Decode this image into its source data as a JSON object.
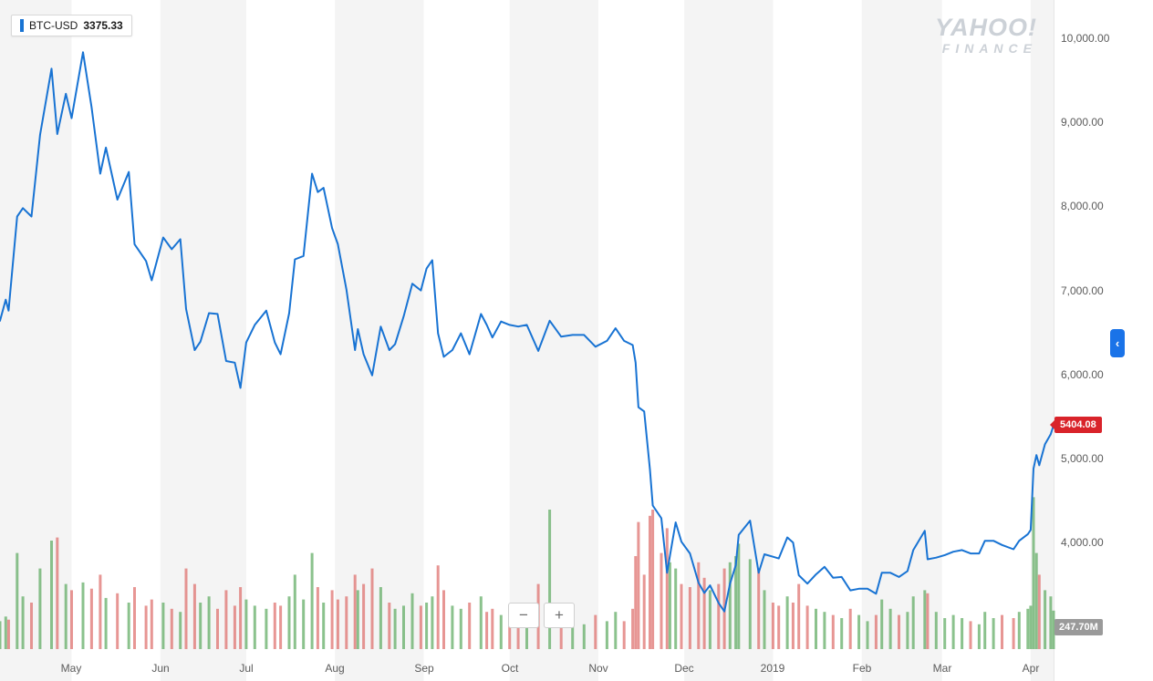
{
  "legend": {
    "symbol": "BTC-USD",
    "value": "3375.33"
  },
  "watermark": {
    "line1": "YAHOO!",
    "line2": "FINANCE"
  },
  "price_tag": {
    "value": "5404.08",
    "color": "#d9232a"
  },
  "volume_tag": {
    "value": "247.70M",
    "color": "#9a9a9a"
  },
  "zoom_controls": {
    "zoom_out": "−",
    "zoom_in": "+"
  },
  "chevron": {
    "glyph": "‹"
  },
  "colors": {
    "line": "#1873d3",
    "vol_up": "#5aa85c",
    "vol_down": "#dd6a66",
    "stripe": "#f4f4f4",
    "axis_line": "#e6e6e6",
    "chevron_bg": "#1a73e8"
  },
  "chart_data": {
    "type": "line",
    "symbol": "BTC-USD",
    "title": "BTC-USD price with volume",
    "x_domain": [
      "2018-04-06",
      "2019-04-09"
    ],
    "last_price": 5404.08,
    "last_volume_label": "247.70M",
    "y_axis": {
      "tick_values": [
        10000,
        9000,
        8000,
        7000,
        6000,
        5000,
        4000
      ],
      "tick_labels": [
        "10,000.00",
        "9,000.00",
        "8,000.00",
        "7,000.00",
        "6,000.00",
        "5,000.00",
        "4,000.00"
      ]
    },
    "x_axis": {
      "ticks": [
        {
          "label": "May",
          "date": "2018-05-01"
        },
        {
          "label": "Jun",
          "date": "2018-06-01"
        },
        {
          "label": "Jul",
          "date": "2018-07-01"
        },
        {
          "label": "Aug",
          "date": "2018-08-01"
        },
        {
          "label": "Sep",
          "date": "2018-09-01"
        },
        {
          "label": "Oct",
          "date": "2018-10-01"
        },
        {
          "label": "Nov",
          "date": "2018-11-01"
        },
        {
          "label": "Dec",
          "date": "2018-12-01"
        },
        {
          "label": "2019",
          "date": "2019-01-01"
        },
        {
          "label": "Feb",
          "date": "2019-02-01"
        },
        {
          "label": "Mar",
          "date": "2019-03-01"
        },
        {
          "label": "Apr",
          "date": "2019-04-01"
        }
      ]
    },
    "series": [
      {
        "name": "BTC-USD",
        "fields": [
          "date",
          "close",
          "volume"
        ],
        "points": [
          [
            "2018-04-06",
            6650,
            180
          ],
          [
            "2018-04-08",
            6900,
            210
          ],
          [
            "2018-04-09",
            6770,
            190
          ],
          [
            "2018-04-12",
            7890,
            620
          ],
          [
            "2018-04-14",
            7990,
            340
          ],
          [
            "2018-04-17",
            7890,
            300
          ],
          [
            "2018-04-20",
            8860,
            520
          ],
          [
            "2018-04-24",
            9650,
            700
          ],
          [
            "2018-04-26",
            8870,
            720
          ],
          [
            "2018-04-29",
            9350,
            420
          ],
          [
            "2018-05-01",
            9060,
            380
          ],
          [
            "2018-05-05",
            9845,
            430
          ],
          [
            "2018-05-08",
            9190,
            390
          ],
          [
            "2018-05-11",
            8400,
            480
          ],
          [
            "2018-05-13",
            8710,
            330
          ],
          [
            "2018-05-17",
            8090,
            360
          ],
          [
            "2018-05-21",
            8420,
            300
          ],
          [
            "2018-05-23",
            7560,
            400
          ],
          [
            "2018-05-27",
            7360,
            280
          ],
          [
            "2018-05-29",
            7130,
            320
          ],
          [
            "2018-06-02",
            7640,
            300
          ],
          [
            "2018-06-05",
            7500,
            260
          ],
          [
            "2018-06-08",
            7620,
            240
          ],
          [
            "2018-06-10",
            6790,
            520
          ],
          [
            "2018-06-13",
            6300,
            420
          ],
          [
            "2018-06-15",
            6400,
            300
          ],
          [
            "2018-06-18",
            6740,
            340
          ],
          [
            "2018-06-21",
            6730,
            260
          ],
          [
            "2018-06-24",
            6170,
            380
          ],
          [
            "2018-06-27",
            6150,
            280
          ],
          [
            "2018-06-29",
            5850,
            400
          ],
          [
            "2018-07-01",
            6390,
            320
          ],
          [
            "2018-07-04",
            6600,
            280
          ],
          [
            "2018-07-08",
            6770,
            260
          ],
          [
            "2018-07-11",
            6390,
            300
          ],
          [
            "2018-07-13",
            6250,
            280
          ],
          [
            "2018-07-16",
            6740,
            340
          ],
          [
            "2018-07-18",
            7380,
            480
          ],
          [
            "2018-07-21",
            7420,
            320
          ],
          [
            "2018-07-24",
            8400,
            620
          ],
          [
            "2018-07-26",
            8180,
            400
          ],
          [
            "2018-07-28",
            8230,
            300
          ],
          [
            "2018-07-31",
            7750,
            380
          ],
          [
            "2018-08-02",
            7560,
            320
          ],
          [
            "2018-08-05",
            7020,
            340
          ],
          [
            "2018-08-08",
            6300,
            480
          ],
          [
            "2018-08-09",
            6550,
            380
          ],
          [
            "2018-08-11",
            6250,
            420
          ],
          [
            "2018-08-14",
            6000,
            520
          ],
          [
            "2018-08-17",
            6580,
            400
          ],
          [
            "2018-08-20",
            6300,
            300
          ],
          [
            "2018-08-22",
            6370,
            260
          ],
          [
            "2018-08-25",
            6700,
            280
          ],
          [
            "2018-08-28",
            7090,
            360
          ],
          [
            "2018-08-31",
            7010,
            280
          ],
          [
            "2018-09-02",
            7270,
            300
          ],
          [
            "2018-09-04",
            7370,
            340
          ],
          [
            "2018-09-06",
            6500,
            540
          ],
          [
            "2018-09-08",
            6220,
            380
          ],
          [
            "2018-09-11",
            6300,
            280
          ],
          [
            "2018-09-14",
            6500,
            260
          ],
          [
            "2018-09-17",
            6250,
            300
          ],
          [
            "2018-09-21",
            6730,
            340
          ],
          [
            "2018-09-23",
            6600,
            240
          ],
          [
            "2018-09-25",
            6450,
            260
          ],
          [
            "2018-09-28",
            6640,
            220
          ],
          [
            "2018-10-01",
            6600,
            200
          ],
          [
            "2018-10-04",
            6580,
            180
          ],
          [
            "2018-10-07",
            6600,
            160
          ],
          [
            "2018-10-11",
            6290,
            420
          ],
          [
            "2018-10-15",
            6650,
            900
          ],
          [
            "2018-10-19",
            6460,
            220
          ],
          [
            "2018-10-23",
            6480,
            180
          ],
          [
            "2018-10-27",
            6480,
            160
          ],
          [
            "2018-10-31",
            6340,
            220
          ],
          [
            "2018-11-04",
            6410,
            180
          ],
          [
            "2018-11-07",
            6560,
            240
          ],
          [
            "2018-11-10",
            6410,
            180
          ],
          [
            "2018-11-13",
            6360,
            260
          ],
          [
            "2018-11-14",
            6150,
            600
          ],
          [
            "2018-11-15",
            5620,
            820
          ],
          [
            "2018-11-17",
            5570,
            480
          ],
          [
            "2018-11-19",
            4880,
            860
          ],
          [
            "2018-11-20",
            4450,
            900
          ],
          [
            "2018-11-23",
            4300,
            620
          ],
          [
            "2018-11-25",
            3650,
            780
          ],
          [
            "2018-11-26",
            3850,
            560
          ],
          [
            "2018-11-28",
            4250,
            520
          ],
          [
            "2018-11-30",
            4020,
            420
          ],
          [
            "2018-12-03",
            3880,
            400
          ],
          [
            "2018-12-06",
            3530,
            560
          ],
          [
            "2018-12-08",
            3410,
            460
          ],
          [
            "2018-12-10",
            3500,
            380
          ],
          [
            "2018-12-13",
            3290,
            420
          ],
          [
            "2018-12-15",
            3190,
            520
          ],
          [
            "2018-12-17",
            3520,
            560
          ],
          [
            "2018-12-19",
            3740,
            600
          ],
          [
            "2018-12-20",
            4100,
            680
          ],
          [
            "2018-12-24",
            4270,
            580
          ],
          [
            "2018-12-27",
            3650,
            520
          ],
          [
            "2018-12-29",
            3870,
            380
          ],
          [
            "2019-01-01",
            3840,
            300
          ],
          [
            "2019-01-03",
            3820,
            280
          ],
          [
            "2019-01-06",
            4070,
            340
          ],
          [
            "2019-01-08",
            4010,
            300
          ],
          [
            "2019-01-10",
            3620,
            420
          ],
          [
            "2019-01-13",
            3520,
            280
          ],
          [
            "2019-01-16",
            3630,
            260
          ],
          [
            "2019-01-19",
            3720,
            240
          ],
          [
            "2019-01-22",
            3590,
            220
          ],
          [
            "2019-01-25",
            3600,
            200
          ],
          [
            "2019-01-28",
            3440,
            260
          ],
          [
            "2019-01-31",
            3460,
            220
          ],
          [
            "2019-02-03",
            3460,
            180
          ],
          [
            "2019-02-06",
            3400,
            220
          ],
          [
            "2019-02-08",
            3650,
            320
          ],
          [
            "2019-02-11",
            3650,
            260
          ],
          [
            "2019-02-14",
            3600,
            220
          ],
          [
            "2019-02-17",
            3670,
            240
          ],
          [
            "2019-02-19",
            3920,
            340
          ],
          [
            "2019-02-23",
            4150,
            380
          ],
          [
            "2019-02-24",
            3810,
            360
          ],
          [
            "2019-02-27",
            3830,
            240
          ],
          [
            "2019-03-02",
            3860,
            200
          ],
          [
            "2019-03-05",
            3900,
            220
          ],
          [
            "2019-03-08",
            3920,
            200
          ],
          [
            "2019-03-11",
            3880,
            180
          ],
          [
            "2019-03-14",
            3880,
            160
          ],
          [
            "2019-03-16",
            4030,
            240
          ],
          [
            "2019-03-19",
            4030,
            200
          ],
          [
            "2019-03-22",
            3980,
            220
          ],
          [
            "2019-03-26",
            3930,
            200
          ],
          [
            "2019-03-28",
            4030,
            240
          ],
          [
            "2019-03-31",
            4110,
            260
          ],
          [
            "2019-04-01",
            4160,
            280
          ],
          [
            "2019-04-02",
            4890,
            980
          ],
          [
            "2019-04-03",
            5050,
            620
          ],
          [
            "2019-04-04",
            4930,
            480
          ],
          [
            "2019-04-06",
            5180,
            380
          ],
          [
            "2019-04-08",
            5300,
            340
          ],
          [
            "2019-04-09",
            5404.08,
            248
          ]
        ]
      }
    ]
  }
}
